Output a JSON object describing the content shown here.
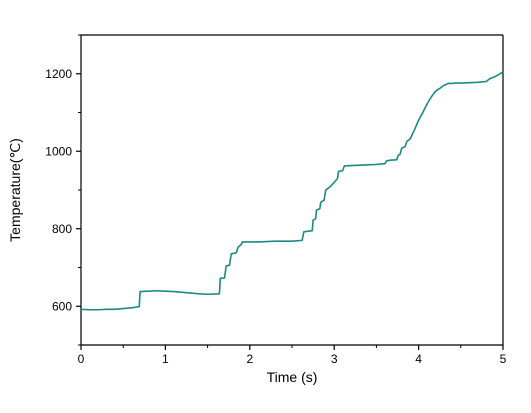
{
  "chart_data": {
    "type": "line",
    "title": "",
    "xlabel": "Time (s)",
    "ylabel": "Temperature(℃)",
    "xlim": [
      0,
      5
    ],
    "ylim": [
      500,
      1300
    ],
    "x_ticks": [
      0,
      1,
      2,
      3,
      4,
      5
    ],
    "x_tick_labels": [
      "0",
      "1",
      "2",
      "3",
      "4",
      "5"
    ],
    "y_ticks": [
      600,
      800,
      1000,
      1200
    ],
    "y_tick_labels": [
      "600",
      "800",
      "1000",
      "1200"
    ],
    "grid": false,
    "legend": "none",
    "colors": {
      "line": "#1a8a84",
      "axis": "#000000"
    },
    "series": [
      {
        "x": [
          0,
          0.1,
          0.2,
          0.3,
          0.4,
          0.5,
          0.6,
          0.69,
          0.7,
          0.8,
          0.9,
          1.0,
          1.1,
          1.2,
          1.3,
          1.4,
          1.5,
          1.64,
          1.65,
          1.7,
          1.72,
          1.76,
          1.78,
          1.84,
          1.86,
          1.9,
          1.91,
          2.0,
          2.1,
          2.2,
          2.3,
          2.4,
          2.5,
          2.62,
          2.64,
          2.74,
          2.75,
          2.78,
          2.79,
          2.83,
          2.84,
          2.88,
          2.9,
          2.95,
          3.0,
          3.04,
          3.05,
          3.1,
          3.12,
          3.2,
          3.3,
          3.4,
          3.5,
          3.6,
          3.62,
          3.64,
          3.66,
          3.74,
          3.76,
          3.78,
          3.8,
          3.84,
          3.86,
          3.9,
          3.95,
          4.0,
          4.05,
          4.1,
          4.15,
          4.2,
          4.25,
          4.3,
          4.35,
          4.4,
          4.43,
          4.5,
          4.6,
          4.7,
          4.8,
          4.85,
          4.9,
          4.95,
          5.0
        ],
        "y": [
          592,
          591,
          591,
          592,
          592,
          594,
          596,
          599,
          638,
          639,
          640,
          639,
          638,
          636,
          634,
          632,
          631,
          632,
          672,
          673,
          704,
          706,
          735,
          738,
          752,
          760,
          766,
          766,
          766,
          767,
          768,
          768,
          768,
          770,
          792,
          795,
          822,
          826,
          848,
          852,
          868,
          874,
          900,
          908,
          920,
          930,
          948,
          950,
          962,
          963,
          964,
          965,
          966,
          968,
          975,
          976,
          977,
          978,
          990,
          992,
          1008,
          1012,
          1025,
          1032,
          1055,
          1080,
          1100,
          1122,
          1140,
          1155,
          1162,
          1170,
          1175,
          1175,
          1176,
          1176,
          1177,
          1178,
          1180,
          1188,
          1192,
          1198,
          1205
        ]
      }
    ]
  }
}
